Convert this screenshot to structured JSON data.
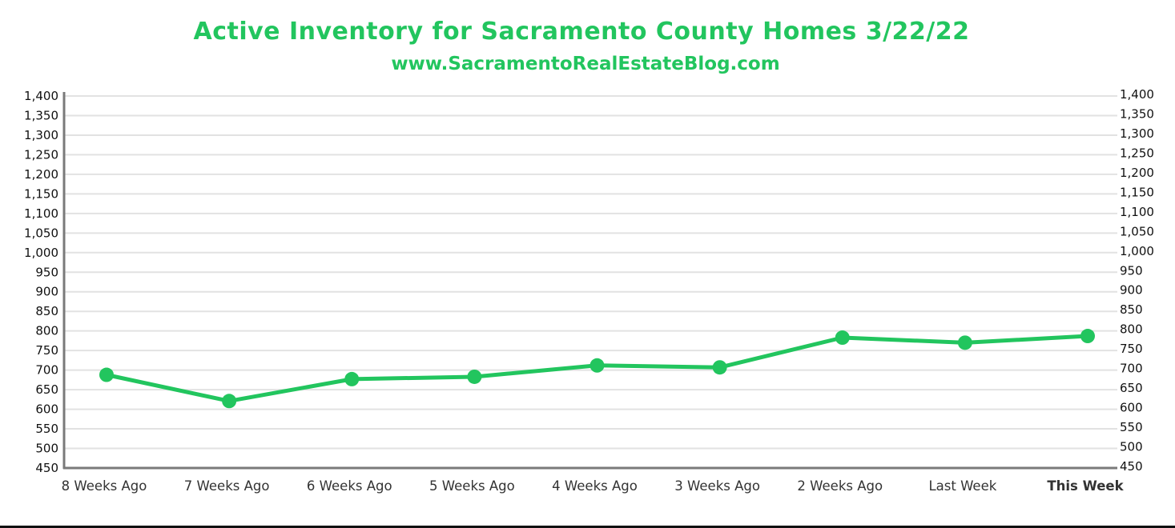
{
  "header": {
    "title": "Active Inventory for Sacramento County Homes 3/22/22",
    "subtitle": "www.SacramentoRealEstateBlog.com"
  },
  "colors": {
    "accent": "#22c55e",
    "axis": "#7a7a7a",
    "grid": "#e2e2e2",
    "text": "#111111"
  },
  "chart_data": {
    "type": "line",
    "title": "Active Inventory for Sacramento County Homes 3/22/22",
    "subtitle": "www.SacramentoRealEstateBlog.com",
    "categories": [
      "8 Weeks Ago",
      "7 Weeks Ago",
      "6 Weeks Ago",
      "5 Weeks Ago",
      "4 Weeks Ago",
      "3 Weeks Ago",
      "2 Weeks Ago",
      "Last Week",
      "This Week"
    ],
    "highlight_category": "This Week",
    "series": [
      {
        "values": [
          688,
          621,
          677,
          683,
          712,
          707,
          783,
          770,
          787
        ]
      }
    ],
    "ylim": [
      450,
      1400
    ],
    "yticks": [
      450,
      500,
      550,
      600,
      650,
      700,
      750,
      800,
      850,
      900,
      950,
      1000,
      1050,
      1100,
      1150,
      1200,
      1250,
      1300,
      1350,
      1400
    ],
    "ytick_labels": [
      "450",
      "500",
      "550",
      "600",
      "650",
      "700",
      "750",
      "800",
      "850",
      "900",
      "950",
      "1,000",
      "1,050",
      "1,100",
      "1,150",
      "1,200",
      "1,250",
      "1,300",
      "1,350",
      "1,400"
    ],
    "right_axis": true,
    "grid": true,
    "xlabel": "",
    "ylabel": ""
  }
}
